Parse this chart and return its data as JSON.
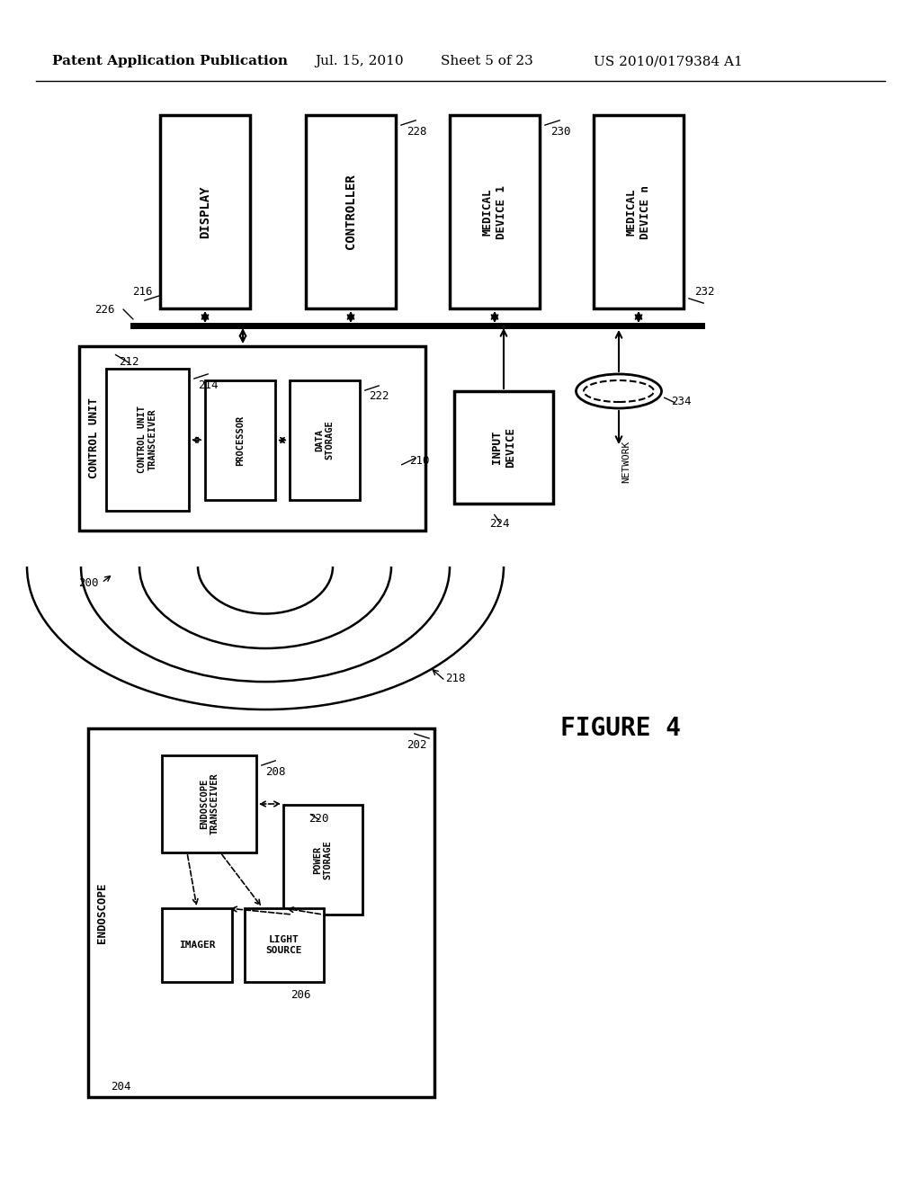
{
  "bg_color": "#ffffff",
  "header_text": "Patent Application Publication",
  "header_date": "Jul. 15, 2010",
  "header_sheet": "Sheet 5 of 23",
  "header_patent": "US 2010/0179384 A1",
  "figure_label": "FIGURE 4",
  "fig_width": 10.24,
  "fig_height": 13.2
}
